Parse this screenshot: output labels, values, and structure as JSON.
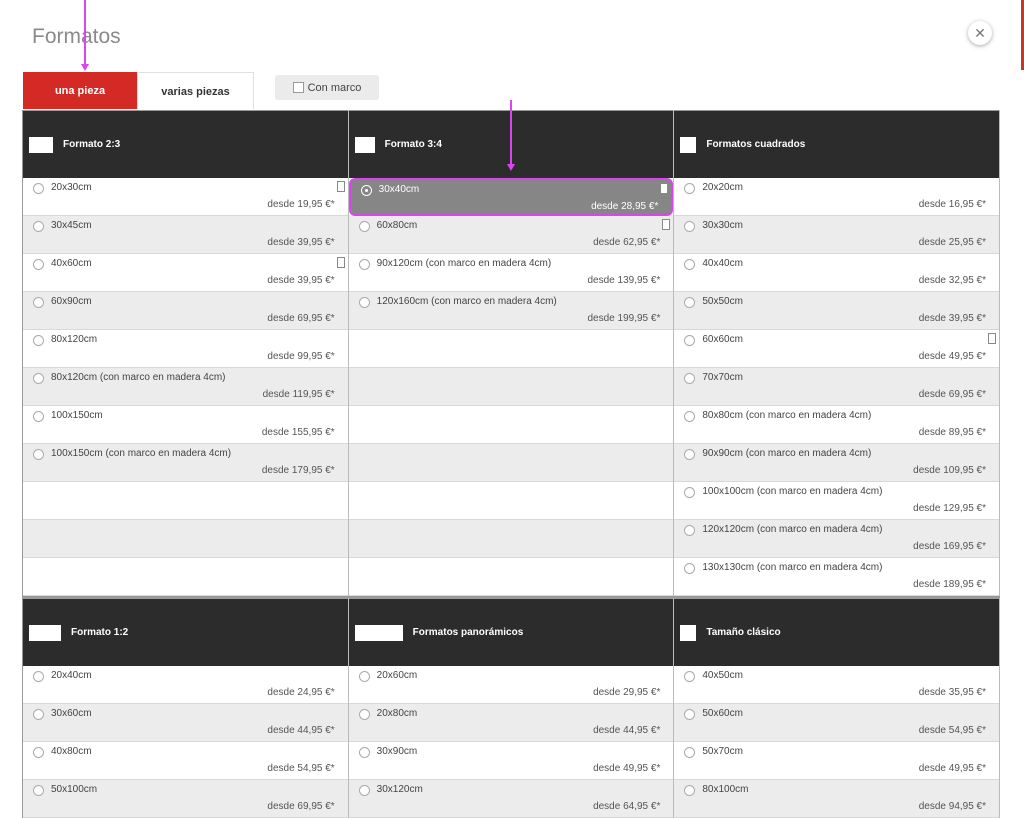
{
  "dialog": {
    "title": "Formatos",
    "close_symbol": "✕"
  },
  "tabs": {
    "active_label": "una pieza",
    "inactive_label": "varias piezas"
  },
  "options": {
    "marco_label": "Con marco"
  },
  "groups_top": [
    {
      "title": "Formato 2:3",
      "items": [
        {
          "size": "20x30cm",
          "price": "desde 19,95 €*",
          "portrait": true
        },
        {
          "size": "30x45cm",
          "price": "desde 39,95 €*"
        },
        {
          "size": "40x60cm",
          "price": "desde 39,95 €*",
          "portrait": true
        },
        {
          "size": "60x90cm",
          "price": "desde 69,95 €*"
        },
        {
          "size": "80x120cm",
          "price": "desde 99,95 €*"
        },
        {
          "size": "80x120cm (con marco en madera 4cm)",
          "price": "desde 119,95 €*"
        },
        {
          "size": "100x150cm",
          "price": "desde 155,95 €*"
        },
        {
          "size": "100x150cm (con marco en madera 4cm)",
          "price": "desde 179,95 €*"
        },
        {
          "size": "",
          "price": ""
        },
        {
          "size": "",
          "price": ""
        },
        {
          "size": "",
          "price": ""
        }
      ]
    },
    {
      "title": "Formato 3:4",
      "items": [
        {
          "size": "30x40cm",
          "price": "desde 28,95 €*",
          "portrait": true,
          "selected": true
        },
        {
          "size": "60x80cm",
          "price": "desde 62,95 €*",
          "portrait": true
        },
        {
          "size": "90x120cm (con marco en madera 4cm)",
          "price": "desde 139,95 €*"
        },
        {
          "size": "120x160cm (con marco en madera 4cm)",
          "price": "desde 199,95 €*"
        },
        {
          "size": "",
          "price": ""
        },
        {
          "size": "",
          "price": ""
        },
        {
          "size": "",
          "price": ""
        },
        {
          "size": "",
          "price": ""
        },
        {
          "size": "",
          "price": ""
        },
        {
          "size": "",
          "price": ""
        },
        {
          "size": "",
          "price": ""
        }
      ]
    },
    {
      "title": "Formatos cuadrados",
      "items": [
        {
          "size": "20x20cm",
          "price": "desde 16,95 €*"
        },
        {
          "size": "30x30cm",
          "price": "desde 25,95 €*"
        },
        {
          "size": "40x40cm",
          "price": "desde 32,95 €*"
        },
        {
          "size": "50x50cm",
          "price": "desde 39,95 €*"
        },
        {
          "size": "60x60cm",
          "price": "desde 49,95 €*",
          "portrait": true
        },
        {
          "size": "70x70cm",
          "price": "desde 69,95 €*"
        },
        {
          "size": "80x80cm (con marco en madera 4cm)",
          "price": "desde 89,95 €*"
        },
        {
          "size": "90x90cm (con marco en madera 4cm)",
          "price": "desde 109,95 €*"
        },
        {
          "size": "100x100cm (con marco en madera 4cm)",
          "price": "desde 129,95 €*"
        },
        {
          "size": "120x120cm (con marco en madera 4cm)",
          "price": "desde 169,95 €*"
        },
        {
          "size": "130x130cm (con marco en madera 4cm)",
          "price": "desde 189,95 €*"
        }
      ]
    }
  ],
  "groups_bottom": [
    {
      "title": "Formato 1:2",
      "items": [
        {
          "size": "20x40cm",
          "price": "desde 24,95 €*"
        },
        {
          "size": "30x60cm",
          "price": "desde 44,95 €*"
        },
        {
          "size": "40x80cm",
          "price": "desde 54,95 €*"
        },
        {
          "size": "50x100cm",
          "price": "desde 69,95 €*"
        }
      ]
    },
    {
      "title": "Formatos panorámicos",
      "items": [
        {
          "size": "20x60cm",
          "price": "desde 29,95 €*"
        },
        {
          "size": "20x80cm",
          "price": "desde 44,95 €*"
        },
        {
          "size": "30x90cm",
          "price": "desde 49,95 €*"
        },
        {
          "size": "30x120cm",
          "price": "desde 64,95 €*"
        }
      ]
    },
    {
      "title": "Tamaño clásico",
      "items": [
        {
          "size": "40x50cm",
          "price": "desde 35,95 €*"
        },
        {
          "size": "50x60cm",
          "price": "desde 54,95 €*"
        },
        {
          "size": "50x70cm",
          "price": "desde 49,95 €*"
        },
        {
          "size": "80x100cm",
          "price": "desde 94,95 €*"
        }
      ]
    }
  ],
  "colors": {
    "accent": "#d42a26",
    "header_bg": "#2c2c2c",
    "annotation": "#d946ef"
  }
}
